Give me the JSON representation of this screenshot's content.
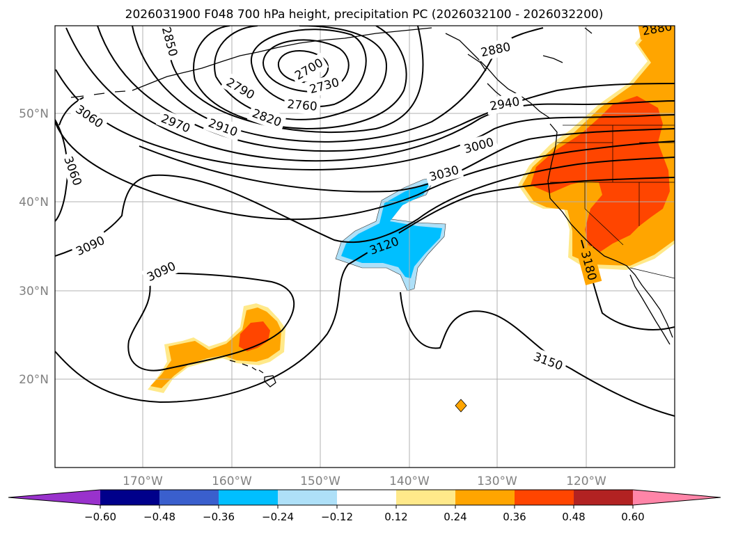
{
  "title": "2026031900 F048 700 hPa height, precipitation PC (2026032100 - 2026032200)",
  "lat_labels": [
    "50°N",
    "40°N",
    "30°N",
    "20°N"
  ],
  "lon_labels": [
    "170°W",
    "160°W",
    "150°W",
    "140°W",
    "130°W",
    "120°W"
  ],
  "contour_labels": [
    "3060",
    "3060",
    "3090",
    "3090",
    "2850",
    "2700",
    "2730",
    "2760",
    "2790",
    "2820",
    "2880",
    "2940",
    "2970",
    "2910",
    "3000",
    "3030",
    "3120",
    "3180",
    "3150",
    "2880"
  ],
  "colorbar": {
    "ticks": [
      "−0.60",
      "−0.48",
      "−0.36",
      "−0.24",
      "−0.12",
      "0.12",
      "0.24",
      "0.36",
      "0.48",
      "0.60"
    ],
    "colors": [
      "#9932cc",
      "#00008b",
      "#3a5fcd",
      "#00bfff",
      "#aee0f8",
      "#ffffff",
      "#ffe98a",
      "#ffa500",
      "#ff4500",
      "#b22222",
      "#ff85a8"
    ]
  },
  "colors": {
    "heavy_positive": "#ff4500",
    "positive": "#ffa500",
    "light_positive": "#ffe98a",
    "negative": "#00bfff",
    "light_negative": "#aee0f8",
    "contour": "#000000",
    "grid": "#b0b0b0",
    "axis_label": "#808080"
  }
}
